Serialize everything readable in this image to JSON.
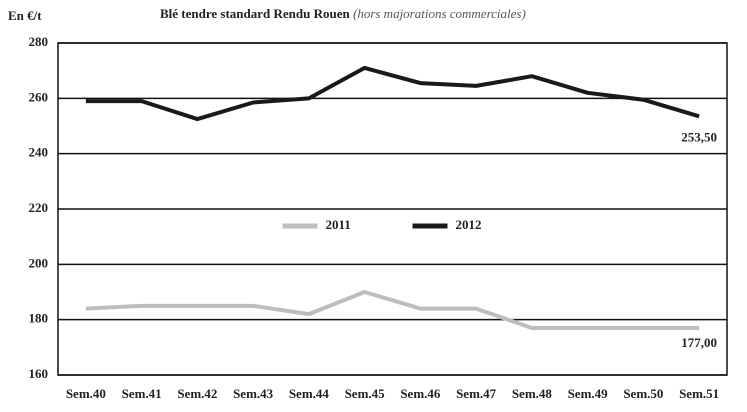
{
  "chart_data": {
    "type": "line",
    "title": "Blé tendre standard Rendu Rouen",
    "subtitle": "(hors majorations commerciales)",
    "y_label": "En €/t",
    "categories": [
      "Sem.40",
      "Sem.41",
      "Sem.42",
      "Sem.43",
      "Sem.44",
      "Sem.45",
      "Sem.46",
      "Sem.47",
      "Sem.48",
      "Sem.49",
      "Sem.50",
      "Sem.51"
    ],
    "series": [
      {
        "name": "2011",
        "color": "#bdbdbd",
        "values": [
          184,
          185,
          185,
          185,
          182,
          190,
          184,
          184,
          177,
          177,
          177,
          177
        ],
        "value_labels": [
          null,
          null,
          null,
          null,
          null,
          null,
          null,
          null,
          null,
          null,
          null,
          "177,00"
        ]
      },
      {
        "name": "2012",
        "color": "#1a1a1a",
        "values": [
          259,
          259,
          252.5,
          258.5,
          260,
          271,
          265.5,
          264.5,
          268,
          262,
          259.5,
          253.5
        ],
        "value_labels": [
          null,
          null,
          null,
          null,
          null,
          null,
          null,
          null,
          null,
          null,
          null,
          "253,50"
        ]
      }
    ],
    "ylim": [
      160,
      280
    ],
    "yticks": [
      160,
      180,
      200,
      220,
      240,
      260,
      280
    ],
    "grid": true,
    "legend": "center"
  }
}
